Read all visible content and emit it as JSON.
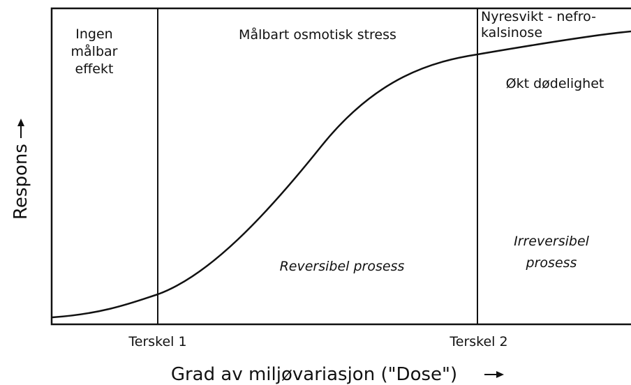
{
  "axes": {
    "y_label": "Respons",
    "x_label": "Grad av miljøvariasjon (\"Dose\")"
  },
  "thresholds": [
    "Terskel 1",
    "Terskel 2"
  ],
  "regions": [
    {
      "lines": [
        "Ingen",
        "målbar",
        "effekt"
      ]
    },
    {
      "lines": [
        "Målbart osmotisk stress"
      ],
      "note": "Reversibel prosess"
    },
    {
      "lines": [
        "Nyresvikt - nefro-",
        "kalsinose"
      ],
      "sub": "Økt dødelighet",
      "note_lines": [
        "Irreversibel",
        "prosess"
      ]
    }
  ]
}
